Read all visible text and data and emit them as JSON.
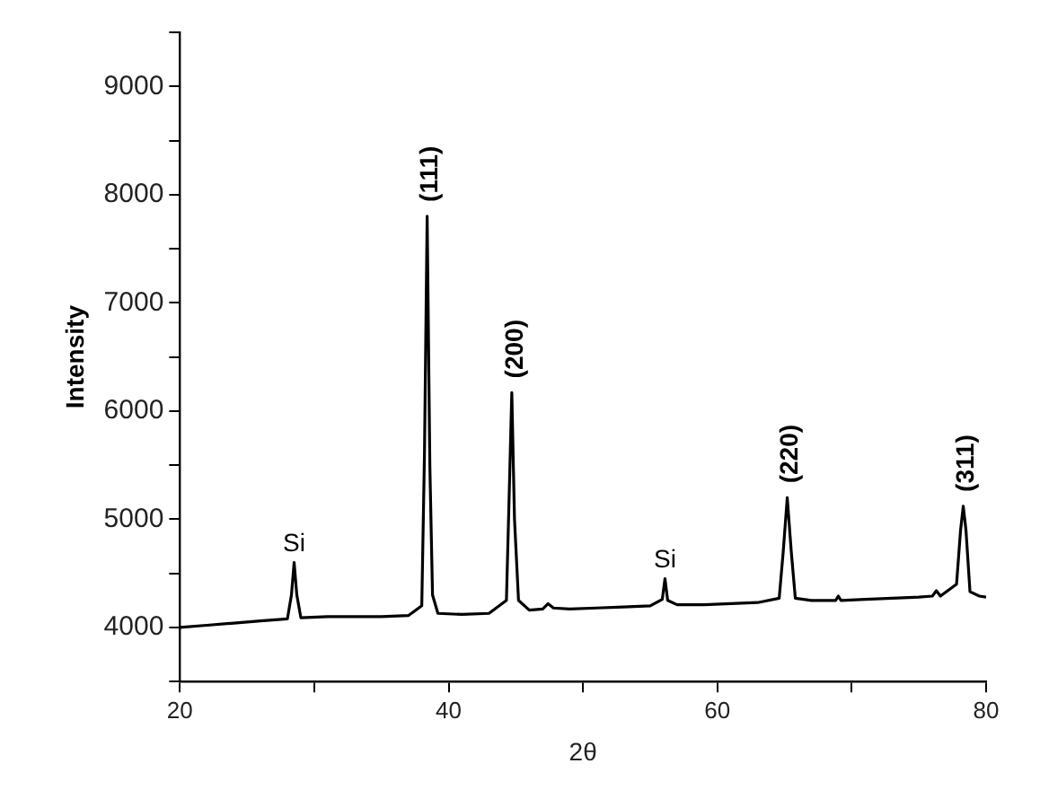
{
  "chart_data": {
    "type": "line",
    "xlabel": "2θ",
    "ylabel": "Intensity",
    "xlim": [
      20,
      80
    ],
    "xticks": [
      20,
      {
        "value": 30,
        "label": null
      },
      40,
      {
        "value": 50,
        "label": null
      },
      60,
      {
        "value": 70,
        "label": null
      },
      80
    ],
    "ylim": [
      3500,
      9500
    ],
    "yticks": [
      {
        "value": 3500,
        "label": null
      },
      4000,
      {
        "value": 4500,
        "label": null
      },
      5000,
      {
        "value": 5500,
        "label": null
      },
      6000,
      {
        "value": 6500,
        "label": null
      },
      7000,
      {
        "value": 7500,
        "label": null
      },
      8000,
      {
        "value": 8500,
        "label": null
      },
      9000,
      {
        "value": 9500,
        "label": null
      }
    ],
    "grid": false,
    "legend": false,
    "marker": "none",
    "line_style": "solid",
    "series": [
      {
        "color": "#000000",
        "x": [
          20,
          22,
          24,
          26,
          28,
          28.3,
          28.5,
          28.7,
          29,
          31,
          33,
          35,
          37,
          38,
          38.2,
          38.4,
          38.6,
          38.8,
          39.2,
          41,
          43,
          44.3,
          44.5,
          44.7,
          44.9,
          45.2,
          46,
          47,
          47.4,
          47.8,
          49,
          51,
          53,
          55,
          55.9,
          56.1,
          56.3,
          57,
          59,
          61,
          63,
          64.6,
          64.9,
          65.2,
          65.5,
          65.8,
          67,
          68.8,
          69,
          69.2,
          71,
          73,
          75,
          76,
          76.3,
          76.6,
          77.8,
          78.1,
          78.3,
          78.5,
          78.8,
          79.5,
          80
        ],
        "values": [
          4000,
          4020,
          4040,
          4060,
          4080,
          4300,
          4600,
          4300,
          4090,
          4100,
          4100,
          4100,
          4110,
          4200,
          5600,
          7800,
          5500,
          4300,
          4130,
          4120,
          4130,
          4250,
          5200,
          6170,
          5000,
          4250,
          4160,
          4170,
          4220,
          4180,
          4170,
          4180,
          4190,
          4200,
          4260,
          4450,
          4250,
          4210,
          4210,
          4220,
          4230,
          4270,
          4700,
          5200,
          4700,
          4270,
          4250,
          4250,
          4290,
          4250,
          4260,
          4270,
          4280,
          4290,
          4340,
          4290,
          4400,
          4900,
          5120,
          4900,
          4330,
          4290,
          4280
        ]
      }
    ],
    "annotations": [
      {
        "text": "Si",
        "x": 28.5,
        "y": 4600
      },
      {
        "text": "(111)",
        "x": 38.4,
        "y": 7800
      },
      {
        "text": "(200)",
        "x": 44.7,
        "y": 6170
      },
      {
        "text": "Si",
        "x": 56.1,
        "y": 4450
      },
      {
        "text": "(220)",
        "x": 65.2,
        "y": 5200
      },
      {
        "text": "(311)",
        "x": 78.3,
        "y": 5120
      }
    ]
  }
}
